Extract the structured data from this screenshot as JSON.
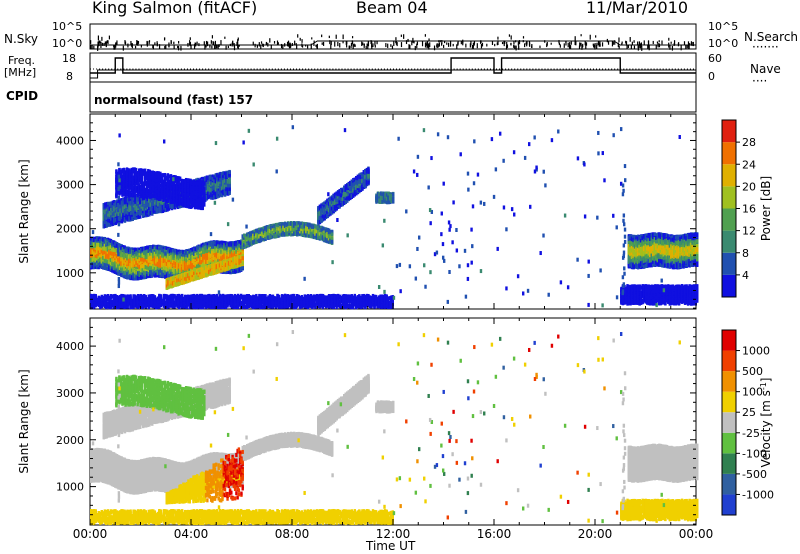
{
  "header": {
    "station": "King Salmon (fitACF)",
    "beam": "Beam 04",
    "date": "11/Mar/2010"
  },
  "left_labels": {
    "nsky": "N.Sky",
    "freq": "Freq.",
    "freq_unit": "[MHz]",
    "cpid": "CPID"
  },
  "right_labels": {
    "nsearch": "N.Search",
    "nsearch_dots": "·······",
    "nave": "Nave",
    "nave_dots": "····"
  },
  "noise_panel": {
    "left_ticks": [
      "10^5",
      "10^0"
    ],
    "right_ticks": [
      "10^5",
      "10^0"
    ]
  },
  "freq_panel": {
    "left_ticks": [
      "18",
      "8"
    ],
    "right_ticks": [
      "60",
      "0"
    ]
  },
  "cpid_text": "normalsound (fast) 157",
  "chart_data": [
    {
      "type": "heatmap",
      "name_panel": "power",
      "ylabel": "Slant Range [km]",
      "xlabel": "Time UT",
      "xticks": [
        "00:00",
        "04:00",
        "08:00",
        "12:00",
        "16:00",
        "20:00",
        "00:00"
      ],
      "yticks": [
        "1000",
        "2000",
        "3000",
        "4000"
      ],
      "ylim": [
        180,
        4600
      ],
      "xlim": [
        0,
        24
      ],
      "colorbar": {
        "label": "Power [dB]",
        "ticks": [
          "4",
          "8",
          "12",
          "16",
          "20",
          "24",
          "28"
        ],
        "colors": [
          "#1010e0",
          "#2050b0",
          "#3a8a70",
          "#50a050",
          "#a0c020",
          "#e0b000",
          "#f07000",
          "#e02010"
        ]
      }
    },
    {
      "type": "heatmap",
      "name_panel": "velocity",
      "ylabel": "Slant Range [km]",
      "xlabel": "Time UT",
      "xticks": [
        "00:00",
        "04:00",
        "08:00",
        "12:00",
        "16:00",
        "20:00",
        "00:00"
      ],
      "yticks": [
        "1000",
        "2000",
        "3000",
        "4000"
      ],
      "ylim": [
        180,
        4600
      ],
      "xlim": [
        0,
        24
      ],
      "colorbar": {
        "label": "Velocity [m s",
        "label_sup": "-1",
        "label_end": "]",
        "ticks": [
          "1000",
          "500",
          "100",
          "25",
          "-25",
          "-100",
          "-500",
          "-1000"
        ],
        "colors": [
          "#2040d0",
          "#3060a0",
          "#308050",
          "#60c040",
          "#c0c0c0",
          "#f0d000",
          "#f09000",
          "#f04000",
          "#e00000"
        ]
      }
    }
  ],
  "x_axis_title": "Time UT"
}
